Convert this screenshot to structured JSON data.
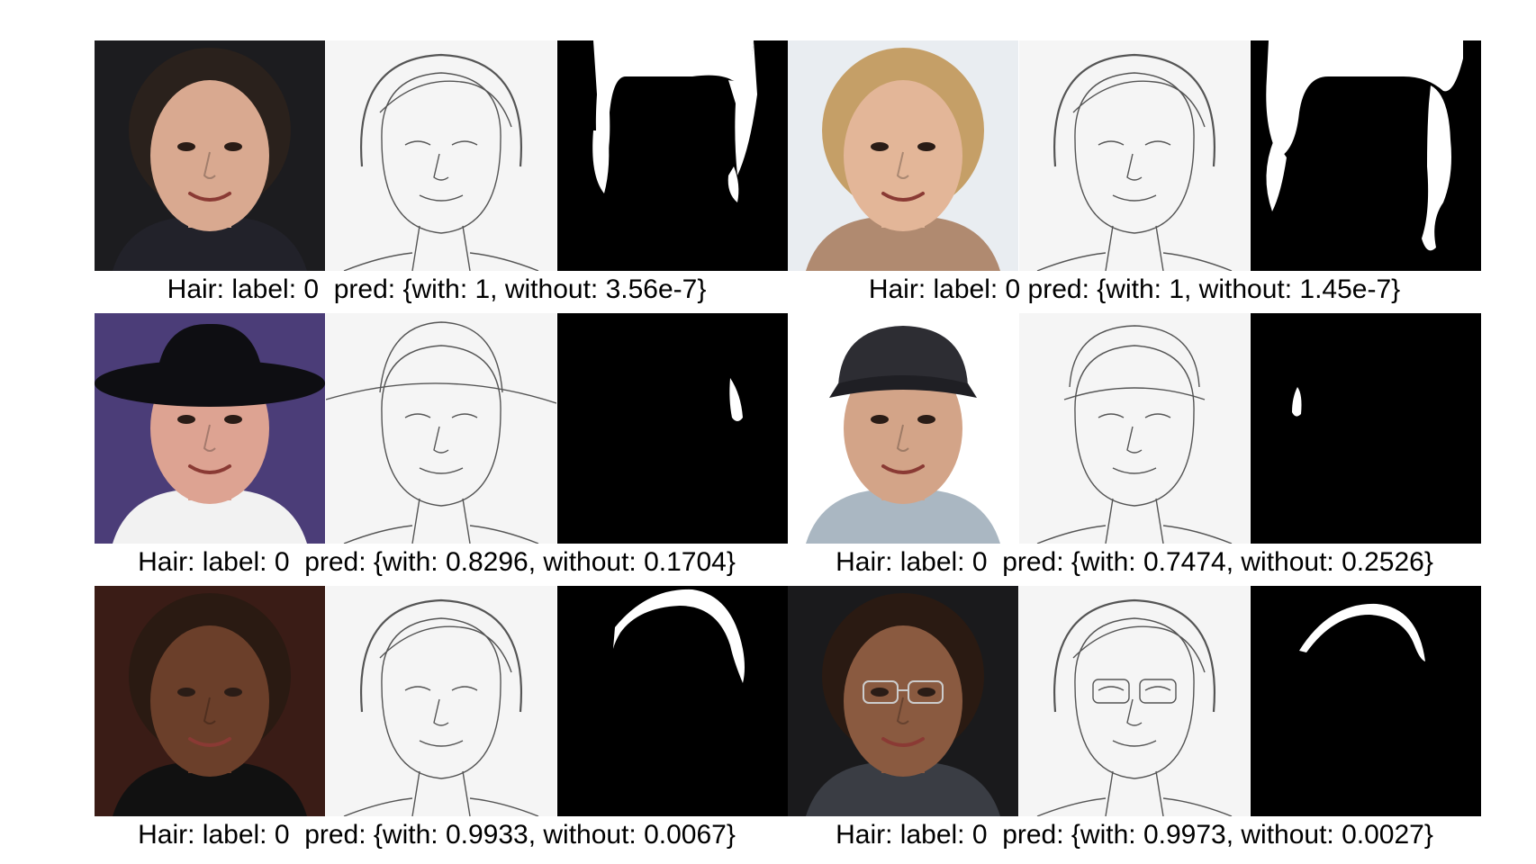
{
  "figure": {
    "examples": [
      {
        "caption": "Hair: label: 0  pred: {with: 1, without: 3.56e-7}",
        "photo": {
          "bg": "#1c1c1f",
          "skin": "#d9a990",
          "hair": "#2a211c",
          "clothes": "#22222a",
          "headwear": "none"
        },
        "mask": "hair-top-sides"
      },
      {
        "caption": "Hair: label: 0 pred: {with: 1, without: 1.45e-7}",
        "photo": {
          "bg": "#e9edf1",
          "skin": "#e3b698",
          "hair": "#c59f67",
          "clothes": "#b08a70",
          "headwear": "none"
        },
        "mask": "hair-full-curly"
      },
      {
        "caption": "Hair: label: 0  pred: {with: 0.8296, without: 0.1704}",
        "photo": {
          "bg": "#4b3d78",
          "skin": "#dda392",
          "hair": "#6b4a33",
          "clothes": "#f2f2f2",
          "headwear": "wide-hat"
        },
        "mask": "right-patch"
      },
      {
        "caption": "Hair: label: 0  pred: {with: 0.7474, without: 0.2526}",
        "photo": {
          "bg": "#ffffff",
          "skin": "#d3a488",
          "hair": "#5a4030",
          "clothes": "#aab7c2",
          "headwear": "cap"
        },
        "mask": "left-small-patch"
      },
      {
        "caption": "Hair: label: 0  pred: {with: 0.9933, without: 0.0067}",
        "photo": {
          "bg": "#3a1c16",
          "skin": "#6b3f2a",
          "hair": "#2a1a12",
          "clothes": "#111111",
          "headwear": "none"
        },
        "mask": "top-arc"
      },
      {
        "caption": "Hair: label: 0  pred: {with: 0.9973, without: 0.0027}",
        "photo": {
          "bg": "#1a1a1c",
          "skin": "#8a5a40",
          "hair": "#2a1a12",
          "clothes": "#3a3d44",
          "headwear": "glasses"
        },
        "mask": "top-arc-narrow"
      }
    ]
  }
}
